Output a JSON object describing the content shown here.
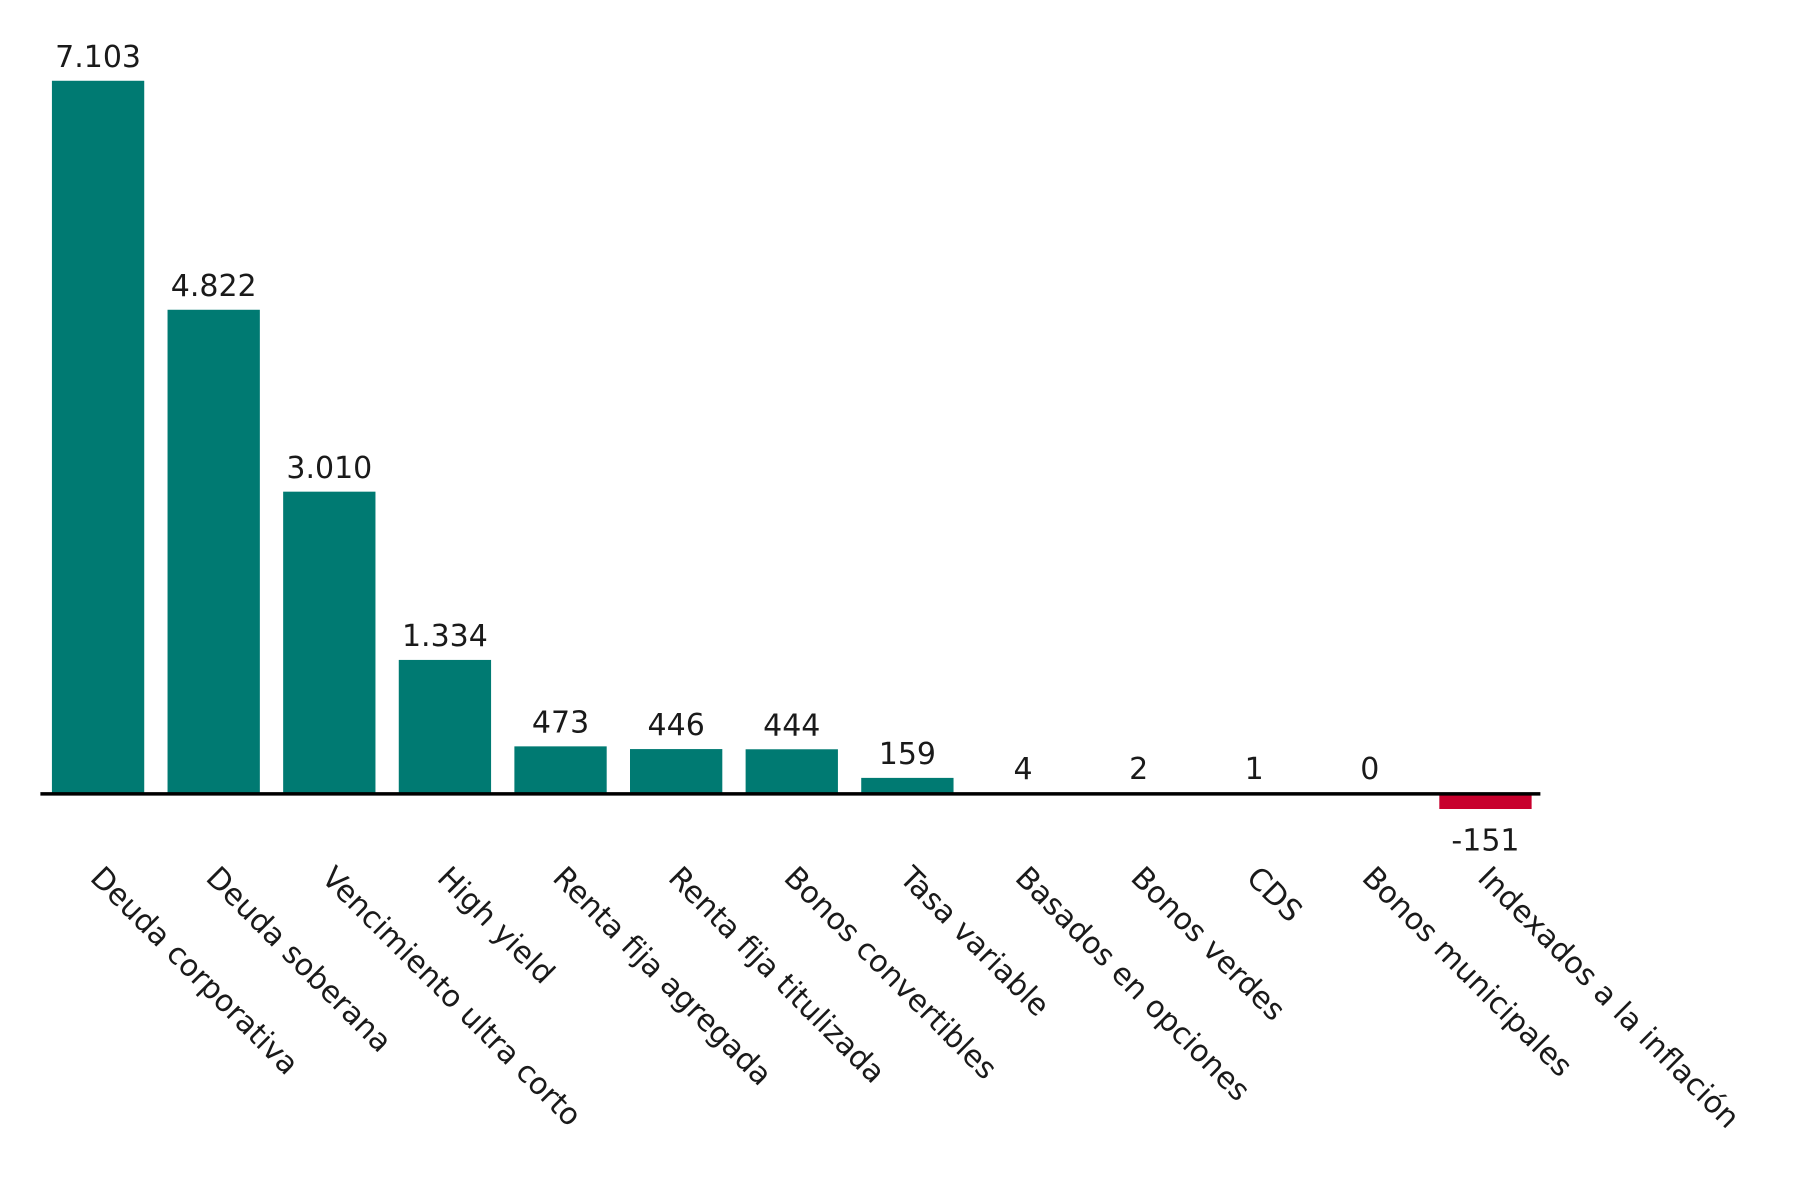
{
  "chart_data": {
    "type": "bar",
    "categories": [
      "Deuda corporativa",
      "Deuda soberana",
      "Vencimiento ultra corto",
      "High yield",
      "Renta fija agregada",
      "Renta fija titulizada",
      "Bonos convertibles",
      "Tasa variable",
      "Basados en opciones",
      "Bonos verdes",
      "CDS",
      "Bonos municipales",
      "Indexados a la inflación"
    ],
    "values": [
      7103,
      4822,
      3010,
      1334,
      473,
      446,
      444,
      159,
      4,
      2,
      1,
      0,
      -151
    ],
    "value_labels": [
      "7.103",
      "4.822",
      "3.010",
      "1.334",
      "473",
      "446",
      "444",
      "159",
      "4",
      "2",
      "1",
      "0",
      "-151"
    ],
    "title": "",
    "xlabel": "",
    "ylabel": "",
    "ylim": [
      -151,
      7103
    ],
    "grid": false,
    "legend": "none",
    "colors": {
      "positive": "#007A72",
      "negative": "#C8002D",
      "axis": "#000000"
    }
  }
}
